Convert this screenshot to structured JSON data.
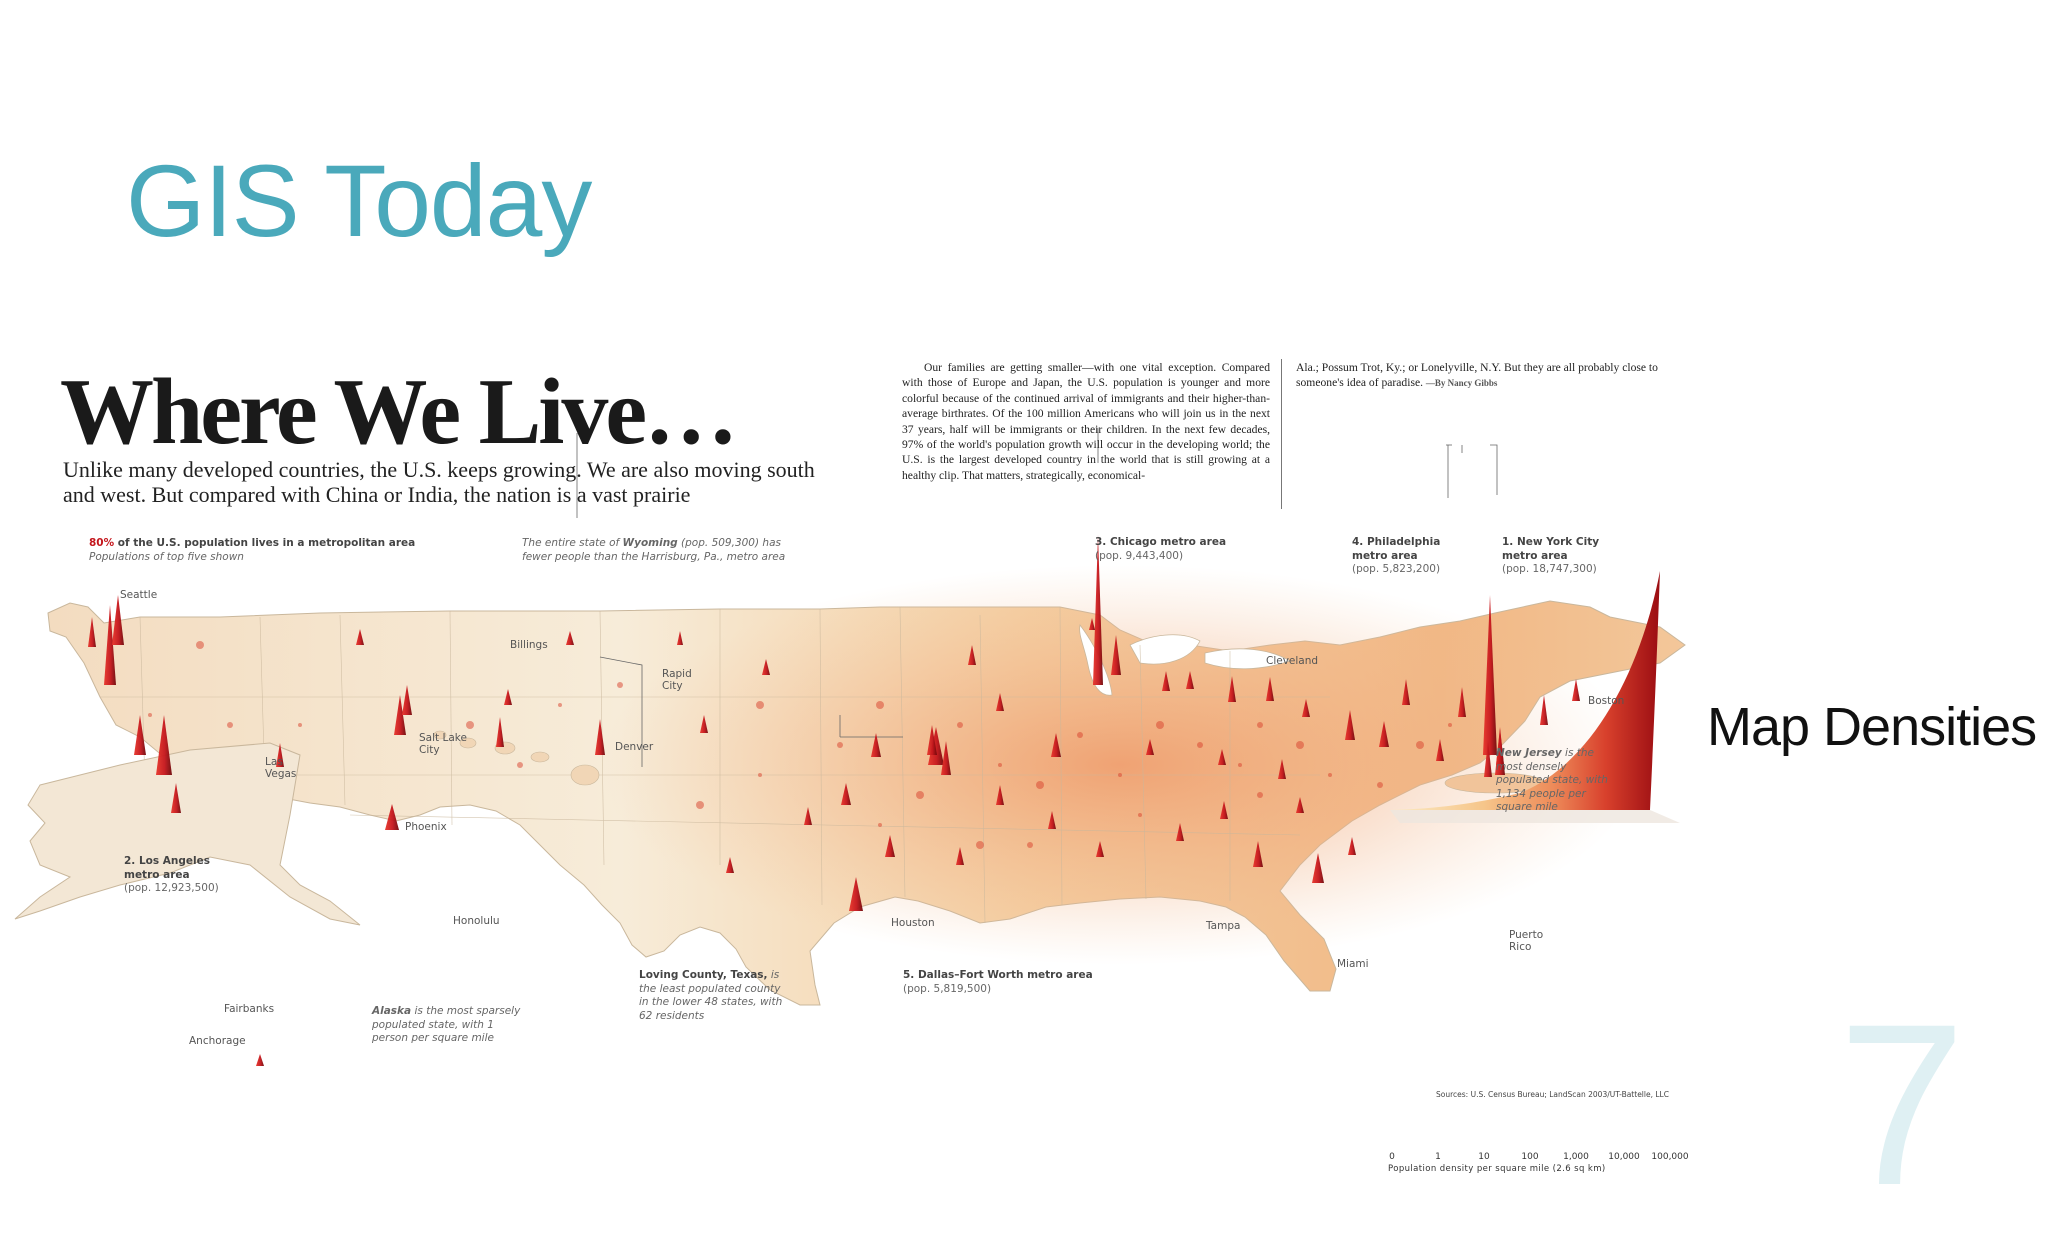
{
  "slide": {
    "title": "GIS Today",
    "side_label": "Map Densities",
    "page_number": "7"
  },
  "infographic": {
    "headline": "Where We Live…",
    "deck": "Unlike many developed countries, the U.S. keeps growing. We are also moving south and west. But compared with China or India, the nation is a vast prairie",
    "body_col1": "Our families are getting smaller—with one vital exception. Compared with those of Europe and Japan, the U.S. population is younger and more colorful because of the continued arrival of immigrants and their higher-than-average birthrates. Of the 100 million Americans who will join us in the next 37 years, half will be immigrants or their children. In the next few decades, 97% of the world's population growth will occur in the developing world; the U.S. is the largest developed country in the world that is still growing at a healthy clip. That matters, strategically, economical-",
    "body_col2": "Ala.; Possum Trot, Ky.; or Lonelyville, N.Y. But they are all probably close to someone's idea of paradise.",
    "byline": "—By Nancy Gibbs",
    "metro_note": {
      "highlight": "80%",
      "text": " of the U.S. population lives in a metropolitan area",
      "sub": "Populations of top five shown"
    },
    "wyoming_note": {
      "pre": "The entire state of ",
      "state": "Wyoming",
      "rest": " (pop. 509,300) has fewer people than the Harrisburg, Pa., metro area"
    },
    "metros": [
      {
        "title": "1. New York City metro area",
        "pop": "(pop. 18,747,300)"
      },
      {
        "title": "2. Los Angeles metro area",
        "pop": "(pop. 12,923,500)"
      },
      {
        "title": "3. Chicago metro area",
        "pop": "(pop. 9,443,400)"
      },
      {
        "title": "4. Philadelphia metro area",
        "pop": "(pop. 5,823,200)"
      },
      {
        "title": "5. Dallas–Fort Worth metro area",
        "pop": "(pop. 5,819,500)"
      }
    ],
    "notes": {
      "new_jersey": {
        "state": "New Jersey",
        "rest": " is the most densely populated state, with 1,134 people per square mile"
      },
      "alaska": {
        "state": "Alaska",
        "rest": " is the most sparsely populated state, with 1 person per square mile"
      },
      "loving": {
        "title": "Loving County, Texas,",
        "rest": "is the least populated county in the lower 48 states, with 62 residents"
      }
    },
    "cities": {
      "seattle": "Seattle",
      "billings": "Billings",
      "rapid_city": "Rapid City",
      "salt_lake": "Salt Lake City",
      "denver": "Denver",
      "las_vegas": "Las Vegas",
      "phoenix": "Phoenix",
      "cleveland": "Cleveland",
      "boston": "Boston",
      "houston": "Houston",
      "tampa": "Tampa",
      "miami": "Miami",
      "honolulu": "Honolulu",
      "fairbanks": "Fairbanks",
      "anchorage": "Anchorage",
      "puerto_rico": "Puerto Rico"
    },
    "legend": {
      "ticks": [
        "0",
        "1",
        "10",
        "100",
        "1,000",
        "10,000",
        "100,000"
      ],
      "caption": "Population density per square mile (2.6 sq km)",
      "sources": "Sources: U.S. Census Bureau; LandScan 2003/UT-Battelle, LLC"
    }
  },
  "colors": {
    "title": "#4aa9bb",
    "spike": "#c4161c",
    "spike_dark": "#7a0a0e",
    "land": "#f6e7cf",
    "land_dense": "#f0b47a"
  }
}
